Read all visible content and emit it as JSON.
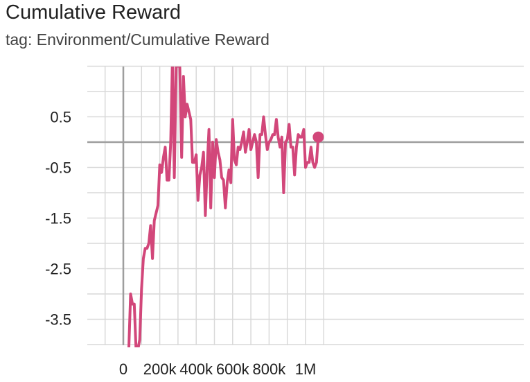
{
  "header": {
    "title": "Cumulative Reward",
    "subtitle": "tag: Environment/Cumulative Reward"
  },
  "colors": {
    "series": "#d2477a",
    "grid": "#d9d9d9",
    "axis": "#9e9e9e"
  },
  "chart_data": {
    "type": "line",
    "title": "Cumulative Reward",
    "subtitle": "tag: Environment/Cumulative Reward",
    "xlabel": "",
    "ylabel": "",
    "xlim": [
      -100000,
      1100000
    ],
    "ylim": [
      -4,
      1.0
    ],
    "x_ticks": [
      0,
      200000,
      400000,
      600000,
      800000,
      1000000
    ],
    "x_tick_labels": [
      "0",
      "200k",
      "400k",
      "600k",
      "800k",
      "1M"
    ],
    "y_ticks": [
      0.5,
      -0.5,
      -1.5,
      -2.5,
      -3.5
    ],
    "y_tick_labels": [
      "0.5",
      "-0.5",
      "-1.5",
      "-2.5",
      "-3.5"
    ],
    "grid": true,
    "series": [
      {
        "name": "",
        "x": [
          30000,
          40000,
          50000,
          60000,
          70000,
          80000,
          90000,
          100000,
          110000,
          120000,
          130000,
          140000,
          150000,
          160000,
          170000,
          190000,
          200000,
          210000,
          220000,
          230000,
          240000,
          250000,
          260000,
          270000,
          280000,
          290000,
          300000,
          310000,
          320000,
          330000,
          340000,
          350000,
          360000,
          370000,
          380000,
          390000,
          400000,
          410000,
          420000,
          430000,
          440000,
          450000,
          460000,
          470000,
          480000,
          490000,
          500000,
          510000,
          520000,
          530000,
          540000,
          550000,
          560000,
          570000,
          580000,
          590000,
          600000,
          610000,
          620000,
          630000,
          640000,
          650000,
          660000,
          670000,
          680000,
          690000,
          700000,
          710000,
          720000,
          730000,
          740000,
          750000,
          760000,
          770000,
          780000,
          790000,
          800000,
          810000,
          820000,
          830000,
          840000,
          850000,
          860000,
          870000,
          880000,
          890000,
          900000,
          910000,
          920000,
          930000,
          940000,
          950000,
          960000,
          970000,
          980000,
          990000,
          1000000,
          1010000,
          1020000,
          1030000,
          1040000,
          1050000,
          1060000,
          1070000
        ],
        "y": [
          -4.1,
          -3.0,
          -3.2,
          -3.2,
          -4.1,
          -4.1,
          -3.9,
          -2.9,
          -2.3,
          -2.1,
          -2.1,
          -2.0,
          -1.65,
          -2.3,
          -1.55,
          -1.25,
          -0.45,
          -0.6,
          -0.3,
          -0.1,
          -0.75,
          -0.75,
          0.0,
          1.7,
          -0.7,
          1.5,
          1.5,
          1.5,
          -0.3,
          1.3,
          0.5,
          0.75,
          0.6,
          0.45,
          -0.4,
          -0.4,
          -0.25,
          -1.15,
          -0.65,
          -0.5,
          -0.2,
          -1.45,
          -0.5,
          0.25,
          -1.3,
          0.0,
          -0.7,
          0.05,
          -0.2,
          -0.35,
          -0.7,
          -0.75,
          -1.3,
          -0.8,
          -0.55,
          -0.8,
          0.45,
          -0.35,
          -0.45,
          -0.1,
          -0.15,
          0.0,
          0.2,
          -0.2,
          0.0,
          0.25,
          -0.15,
          0.0,
          0.15,
          0.0,
          -0.7,
          0.15,
          0.15,
          0.5,
          0.15,
          -0.15,
          0.0,
          0.05,
          0.15,
          0.15,
          0.45,
          0.1,
          -0.1,
          0.1,
          -1.0,
          0.0,
          0.05,
          0.35,
          -0.1,
          -0.1,
          -0.65,
          -0.1,
          0.15,
          0.1,
          0.1,
          0.25,
          -0.5,
          -0.4,
          -0.4,
          -0.1,
          -0.4,
          -0.5,
          -0.4,
          0.1
        ]
      }
    ]
  }
}
